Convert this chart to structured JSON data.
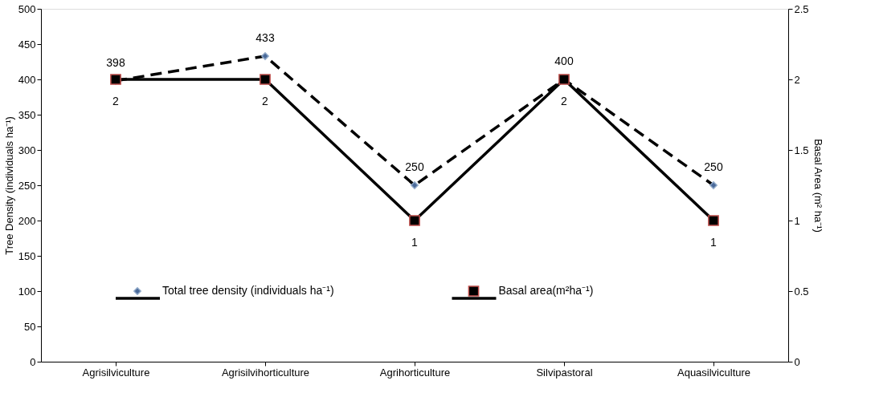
{
  "chart_data": {
    "type": "line",
    "categories": [
      "Agrisilviculture",
      "Agrisilvihorticulture",
      "Agrihorticulture",
      "Silvipastoral",
      "Aquasilviculture"
    ],
    "ylabel": "Tree Density (individuals ha⁻¹)",
    "y2label": "Basal Area (m² ha⁻¹)",
    "ylim": [
      0,
      500
    ],
    "yticks": [
      0,
      50,
      100,
      150,
      200,
      250,
      300,
      350,
      400,
      450,
      500
    ],
    "y2lim": [
      0,
      2.5
    ],
    "y2ticks": [
      0,
      0.5,
      1,
      1.5,
      2,
      2.5
    ],
    "series": [
      {
        "name": "Total tree density (individuals ha⁻¹)",
        "color": "#000000",
        "values": [
          398,
          433,
          250,
          400,
          250
        ],
        "line_style": "dashed",
        "marker": "diamond"
      },
      {
        "name": "Basal area(m²ha⁻¹)",
        "color": "#000000",
        "values": [
          2,
          2,
          1,
          2,
          1
        ],
        "axis": "y2",
        "line_style": "solid",
        "marker": "square"
      }
    ],
    "data_labels": true,
    "legend": "bottom",
    "grid": false
  }
}
